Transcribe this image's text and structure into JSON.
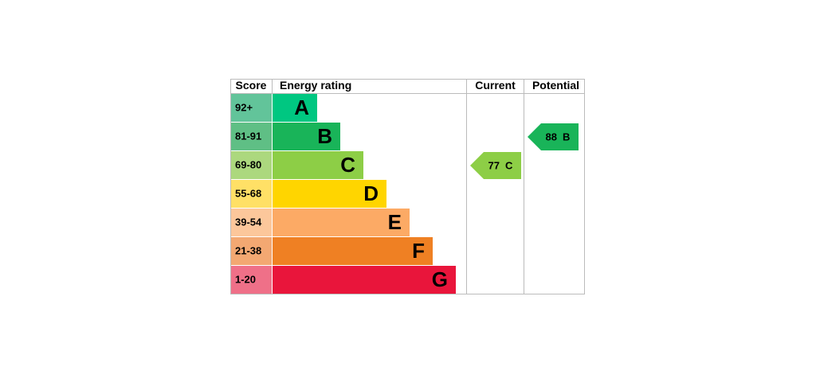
{
  "headers": {
    "score": "Score",
    "rating": "Energy rating",
    "current": "Current",
    "potential": "Potential"
  },
  "bands": [
    {
      "score": "92+",
      "letter": "A",
      "color": "#00c781",
      "score_color": "#62c49a"
    },
    {
      "score": "81-91",
      "letter": "B",
      "color": "#19b459",
      "score_color": "#5fbf85"
    },
    {
      "score": "69-80",
      "letter": "C",
      "color": "#8dce46",
      "score_color": "#acd87e"
    },
    {
      "score": "55-68",
      "letter": "D",
      "color": "#ffd500",
      "score_color": "#ffe066"
    },
    {
      "score": "39-54",
      "letter": "E",
      "color": "#fcaa65",
      "score_color": "#fcc79b"
    },
    {
      "score": "21-38",
      "letter": "F",
      "color": "#ef8023",
      "score_color": "#f3a872"
    },
    {
      "score": "1-20",
      "letter": "G",
      "color": "#e9153b",
      "score_color": "#ef7088"
    }
  ],
  "current": {
    "value": 77,
    "letter": "C"
  },
  "potential": {
    "value": 88,
    "letter": "B"
  }
}
